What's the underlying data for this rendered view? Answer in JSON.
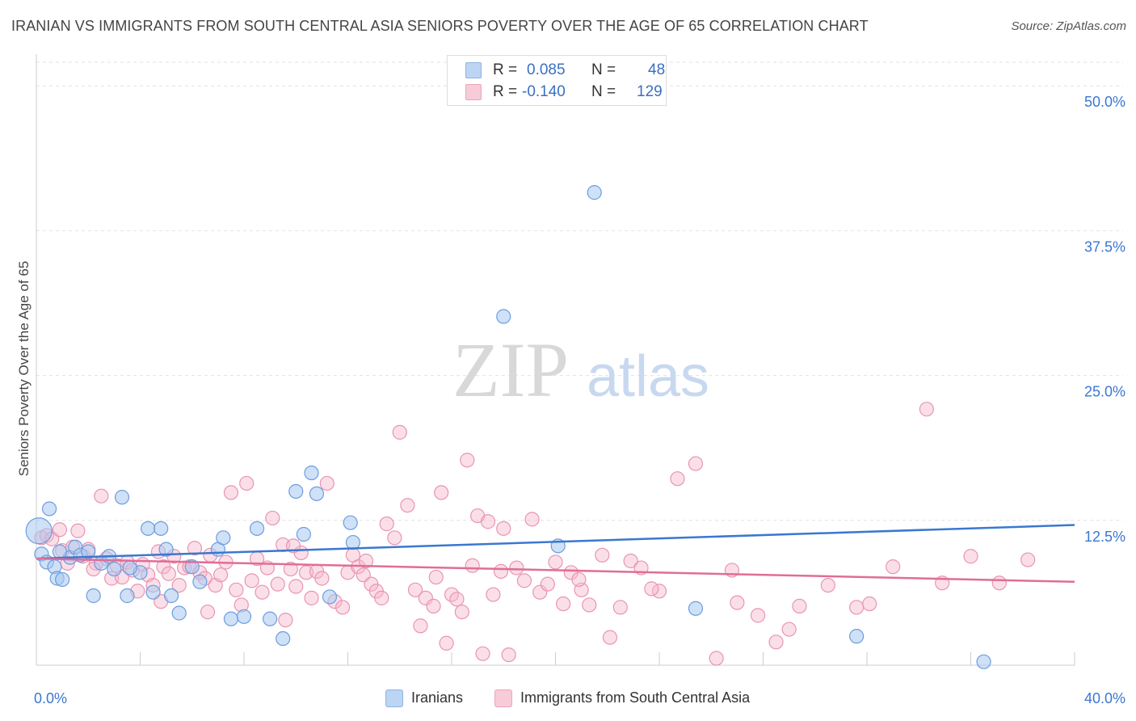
{
  "header": {
    "title": "IRANIAN VS IMMIGRANTS FROM SOUTH CENTRAL ASIA SENIORS POVERTY OVER THE AGE OF 65 CORRELATION CHART",
    "source": "Source: ZipAtlas.com"
  },
  "watermark": {
    "zip": "ZIP",
    "atlas": "atlas"
  },
  "legend_top": {
    "r_label": "R =",
    "n_label": "N =",
    "rows": [
      {
        "r": "0.085",
        "n": "48",
        "color": "#a8c8f0"
      },
      {
        "r": "-0.140",
        "n": "129",
        "color": "#f6b8cb"
      }
    ]
  },
  "legend_bottom": [
    {
      "label": "Iranians",
      "color": "#a8c8f0"
    },
    {
      "label": "Immigrants from South Central Asia",
      "color": "#f6b8cb"
    }
  ],
  "chart_data": {
    "type": "scatter",
    "title": "IRANIAN VS IMMIGRANTS FROM SOUTH CENTRAL ASIA SENIORS POVERTY OVER THE AGE OF 65 CORRELATION CHART",
    "xlabel": "",
    "ylabel": "Seniors Poverty Over the Age of 65",
    "xlim": [
      0,
      40
    ],
    "ylim": [
      0,
      50
    ],
    "x_tick_labels": [
      "0.0%",
      "40.0%"
    ],
    "y_tick_labels": [
      "12.5%",
      "25.0%",
      "37.5%",
      "50.0%"
    ],
    "y_ticks": [
      12.5,
      25,
      37.5,
      50
    ],
    "grid": true,
    "legend_position": "top-center",
    "colors": {
      "iranians": "#3a78d0",
      "immigrants": "#e06d98"
    },
    "series": [
      {
        "name": "Iranians",
        "trend": {
          "x": [
            0,
            40
          ],
          "y": [
            9.2,
            12.1
          ]
        },
        "points": [
          [
            0.1,
            11.6
          ],
          [
            0.2,
            9.6
          ],
          [
            0.4,
            8.9
          ],
          [
            0.5,
            13.5
          ],
          [
            0.7,
            8.5
          ],
          [
            0.8,
            7.5
          ],
          [
            1.0,
            7.4
          ],
          [
            1.3,
            9.3
          ],
          [
            1.5,
            10.2
          ],
          [
            1.7,
            9.5
          ],
          [
            2.0,
            9.8
          ],
          [
            2.2,
            6.0
          ],
          [
            2.5,
            8.8
          ],
          [
            2.8,
            9.4
          ],
          [
            3.0,
            8.3
          ],
          [
            3.3,
            14.5
          ],
          [
            3.5,
            6.0
          ],
          [
            4.0,
            8.0
          ],
          [
            4.3,
            11.8
          ],
          [
            4.5,
            6.3
          ],
          [
            4.8,
            11.8
          ],
          [
            5.0,
            10.0
          ],
          [
            5.2,
            6.0
          ],
          [
            5.5,
            4.5
          ],
          [
            6.0,
            8.5
          ],
          [
            6.3,
            7.2
          ],
          [
            7.0,
            10.0
          ],
          [
            7.2,
            11.0
          ],
          [
            7.5,
            4.0
          ],
          [
            8.0,
            4.2
          ],
          [
            8.5,
            11.8
          ],
          [
            9.0,
            4.0
          ],
          [
            9.5,
            2.3
          ],
          [
            10.0,
            15.0
          ],
          [
            10.3,
            11.3
          ],
          [
            10.6,
            16.6
          ],
          [
            10.8,
            14.8
          ],
          [
            11.3,
            5.9
          ],
          [
            12.1,
            12.3
          ],
          [
            12.2,
            10.6
          ],
          [
            18.0,
            30.1
          ],
          [
            20.1,
            10.3
          ],
          [
            21.5,
            40.8
          ],
          [
            25.4,
            4.9
          ],
          [
            31.6,
            2.5
          ],
          [
            36.5,
            0.3
          ],
          [
            0.9,
            9.8
          ],
          [
            3.6,
            8.4
          ]
        ]
      },
      {
        "name": "Immigrants from South Central Asia",
        "trend": {
          "x": [
            0,
            40
          ],
          "y": [
            9.2,
            7.2
          ]
        },
        "points": [
          [
            0.2,
            11.0
          ],
          [
            0.4,
            11.2
          ],
          [
            0.6,
            10.9
          ],
          [
            0.9,
            11.7
          ],
          [
            1.0,
            9.9
          ],
          [
            1.2,
            8.8
          ],
          [
            1.4,
            10.2
          ],
          [
            1.6,
            11.6
          ],
          [
            1.8,
            9.4
          ],
          [
            2.0,
            10.0
          ],
          [
            2.3,
            8.8
          ],
          [
            2.5,
            14.6
          ],
          [
            2.7,
            9.2
          ],
          [
            2.9,
            7.5
          ],
          [
            3.1,
            8.6
          ],
          [
            3.3,
            7.6
          ],
          [
            3.5,
            8.9
          ],
          [
            3.7,
            8.2
          ],
          [
            3.9,
            6.4
          ],
          [
            4.1,
            8.7
          ],
          [
            4.3,
            7.8
          ],
          [
            4.5,
            6.9
          ],
          [
            4.7,
            9.8
          ],
          [
            4.9,
            8.5
          ],
          [
            5.1,
            7.9
          ],
          [
            5.3,
            9.4
          ],
          [
            5.5,
            6.9
          ],
          [
            5.7,
            8.4
          ],
          [
            5.9,
            8.5
          ],
          [
            6.1,
            10.1
          ],
          [
            6.3,
            8.0
          ],
          [
            6.5,
            7.5
          ],
          [
            6.7,
            9.5
          ],
          [
            6.9,
            6.9
          ],
          [
            7.1,
            7.8
          ],
          [
            7.3,
            8.9
          ],
          [
            7.5,
            14.9
          ],
          [
            7.7,
            6.5
          ],
          [
            7.9,
            5.2
          ],
          [
            8.1,
            15.7
          ],
          [
            8.3,
            7.3
          ],
          [
            8.5,
            9.2
          ],
          [
            8.7,
            6.3
          ],
          [
            8.9,
            8.4
          ],
          [
            9.1,
            12.7
          ],
          [
            9.3,
            7.0
          ],
          [
            9.5,
            10.4
          ],
          [
            9.6,
            3.9
          ],
          [
            9.8,
            8.3
          ],
          [
            10.0,
            6.8
          ],
          [
            10.2,
            9.7
          ],
          [
            10.4,
            8.0
          ],
          [
            10.6,
            5.8
          ],
          [
            10.8,
            8.1
          ],
          [
            11.0,
            7.5
          ],
          [
            11.2,
            15.7
          ],
          [
            11.5,
            5.5
          ],
          [
            11.8,
            5.0
          ],
          [
            12.0,
            8.0
          ],
          [
            12.2,
            9.5
          ],
          [
            12.4,
            8.5
          ],
          [
            12.6,
            7.8
          ],
          [
            12.9,
            7.0
          ],
          [
            13.1,
            6.4
          ],
          [
            13.3,
            5.8
          ],
          [
            13.5,
            12.2
          ],
          [
            13.8,
            11.0
          ],
          [
            14.0,
            20.1
          ],
          [
            14.3,
            13.8
          ],
          [
            14.6,
            6.5
          ],
          [
            14.8,
            3.4
          ],
          [
            15.0,
            5.8
          ],
          [
            15.3,
            5.1
          ],
          [
            15.6,
            14.9
          ],
          [
            15.8,
            1.9
          ],
          [
            16.0,
            6.1
          ],
          [
            16.2,
            5.7
          ],
          [
            16.4,
            4.6
          ],
          [
            16.6,
            17.7
          ],
          [
            16.8,
            8.6
          ],
          [
            17.0,
            12.9
          ],
          [
            17.2,
            1.0
          ],
          [
            17.4,
            12.4
          ],
          [
            17.6,
            6.1
          ],
          [
            17.9,
            8.1
          ],
          [
            18.2,
            0.9
          ],
          [
            18.5,
            8.4
          ],
          [
            18.8,
            7.3
          ],
          [
            19.1,
            12.6
          ],
          [
            19.4,
            6.3
          ],
          [
            19.7,
            7.0
          ],
          [
            20.0,
            8.9
          ],
          [
            20.3,
            5.3
          ],
          [
            20.6,
            8.0
          ],
          [
            21.0,
            6.5
          ],
          [
            21.3,
            5.2
          ],
          [
            21.8,
            9.5
          ],
          [
            22.1,
            2.4
          ],
          [
            22.5,
            5.0
          ],
          [
            22.9,
            9.0
          ],
          [
            23.3,
            8.4
          ],
          [
            24.0,
            6.4
          ],
          [
            24.7,
            16.1
          ],
          [
            25.4,
            17.4
          ],
          [
            26.2,
            0.6
          ],
          [
            27.0,
            5.4
          ],
          [
            27.8,
            4.3
          ],
          [
            28.5,
            2.0
          ],
          [
            29.4,
            5.1
          ],
          [
            30.5,
            6.9
          ],
          [
            31.6,
            5.0
          ],
          [
            32.1,
            5.3
          ],
          [
            33.0,
            8.5
          ],
          [
            34.3,
            22.1
          ],
          [
            34.9,
            7.1
          ],
          [
            36.0,
            9.4
          ],
          [
            37.1,
            7.1
          ],
          [
            38.2,
            9.1
          ],
          [
            2.2,
            8.3
          ],
          [
            4.8,
            5.5
          ],
          [
            6.6,
            4.6
          ],
          [
            9.9,
            10.3
          ],
          [
            12.7,
            9.0
          ],
          [
            15.4,
            7.6
          ],
          [
            18.0,
            11.8
          ],
          [
            20.9,
            7.4
          ],
          [
            23.7,
            6.6
          ],
          [
            26.8,
            8.2
          ],
          [
            29.0,
            3.1
          ]
        ]
      }
    ]
  }
}
